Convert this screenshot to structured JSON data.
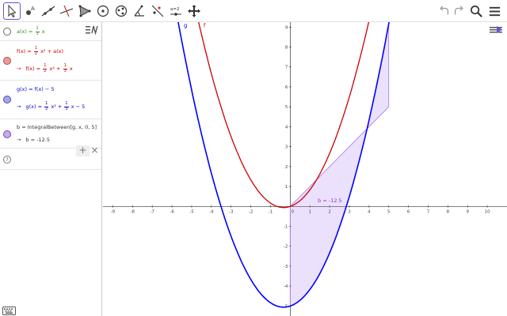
{
  "toolbar": {
    "tools": [
      {
        "id": "move",
        "icon": "cursor-arrow-icon"
      },
      {
        "id": "point",
        "icon": "point-icon"
      },
      {
        "id": "line",
        "icon": "line-icon"
      },
      {
        "id": "perpendicular",
        "icon": "perpendicular-line-icon"
      },
      {
        "id": "polygon",
        "icon": "polygon-icon"
      },
      {
        "id": "circle",
        "icon": "circle-icon"
      },
      {
        "id": "ellipse",
        "icon": "ellipse-icon"
      },
      {
        "id": "angle",
        "icon": "angle-icon"
      },
      {
        "id": "reflect",
        "icon": "reflect-icon"
      },
      {
        "id": "slider",
        "icon": "slider-icon",
        "label": "a=2"
      },
      {
        "id": "move-graphics",
        "icon": "move-view-icon"
      }
    ]
  },
  "algebra": {
    "row_a": {
      "name": "a(x)",
      "eq": "=",
      "num": "1",
      "den": "3",
      "var": "x"
    },
    "row_f": {
      "input_prefix": "f(x) = ",
      "num": "1",
      "den": "2",
      "tail": "x² + a(x)",
      "arrow": "→",
      "out_prefix": "f(x) = ",
      "out_num1": "1",
      "out_den1": "2",
      "out_mid": "x² +",
      "out_num2": "1",
      "out_den2": "3",
      "out_tail": "x"
    },
    "row_g": {
      "input": "g(x) = f(x) − 5",
      "arrow": "→",
      "out_prefix": "g(x) = ",
      "out_num1": "1",
      "out_den1": "2",
      "out_mid": "x² +",
      "out_num2": "1",
      "out_den2": "3",
      "out_tail": "x − 5"
    },
    "row_b": {
      "input": "b = IntegralBetween[g, x, 0, 5]",
      "arrow": "→",
      "output": "b = -12.5"
    },
    "help_symbol": "?",
    "add_symbol": "+",
    "close_symbol": "×"
  },
  "graphics": {
    "xlim": [
      -9.5,
      11
    ],
    "ylim": [
      -5.5,
      9.25
    ],
    "x_ticks": [
      "-9",
      "-8",
      "-7",
      "-6",
      "-5",
      "-4",
      "-3",
      "-2",
      "-1",
      "0",
      "1",
      "2",
      "3",
      "4",
      "5",
      "6",
      "7",
      "8",
      "9",
      "10"
    ],
    "y_ticks": [
      "-5",
      "-4",
      "-3",
      "-2",
      "-1",
      "1",
      "2",
      "3",
      "4",
      "5",
      "6",
      "7",
      "8",
      "9"
    ],
    "curve_labels": {
      "g": "g",
      "f": "f"
    },
    "integral_label": "b = -12.5",
    "integral_bounds": [
      0,
      5
    ],
    "colors": {
      "f": "#cc0000",
      "g": "#0000ff",
      "integral": "#a875f0",
      "axis": "#333333"
    }
  }
}
